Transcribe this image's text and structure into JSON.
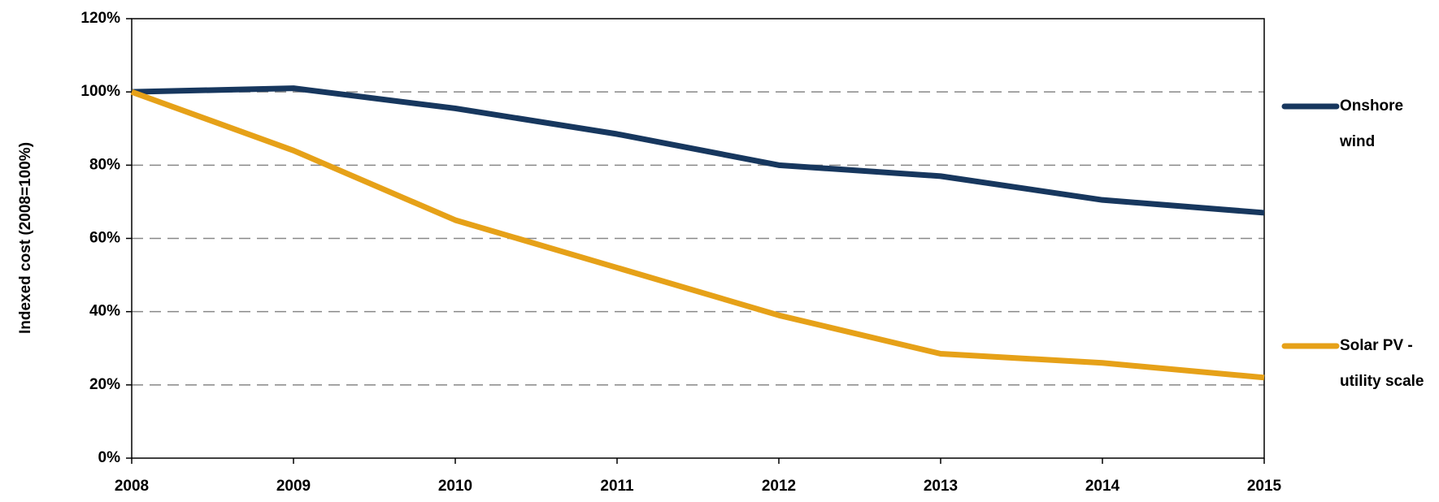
{
  "chart_data": {
    "type": "line",
    "y_label": "Indexed cost (2008=100%)",
    "categories": [
      "2008",
      "2009",
      "2010",
      "2011",
      "2012",
      "2013",
      "2014",
      "2015"
    ],
    "series": [
      {
        "name": "Onshore wind",
        "color": "#17375e",
        "values": [
          100,
          101,
          95.5,
          88.5,
          80,
          77,
          70.5,
          67
        ]
      },
      {
        "name": "Solar PV - utility scale",
        "color": "#e6a118",
        "values": [
          100,
          84,
          65,
          52,
          39,
          28.5,
          26,
          22
        ]
      }
    ],
    "ylim": [
      0,
      120
    ],
    "yticks": [
      {
        "value": 0,
        "label": "0%"
      },
      {
        "value": 20,
        "label": "20%"
      },
      {
        "value": 40,
        "label": "40%"
      },
      {
        "value": 60,
        "label": "60%"
      },
      {
        "value": 80,
        "label": "80%"
      },
      {
        "value": 100,
        "label": "100%"
      },
      {
        "value": 120,
        "label": "120%"
      }
    ],
    "grid": true,
    "legend": "right"
  }
}
